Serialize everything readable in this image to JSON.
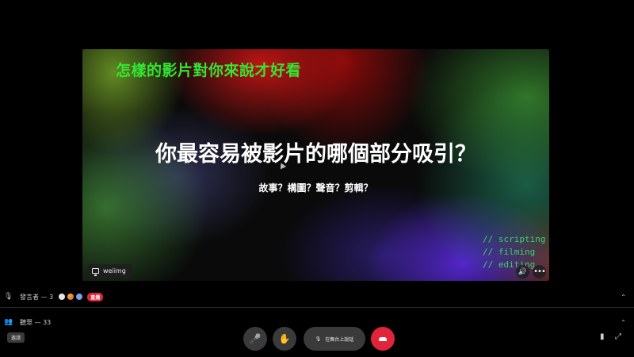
{
  "stage": {
    "topic": "怎樣的影片對你來說才好看",
    "title": "你最容易被影片的哪個部分吸引？",
    "subtitle": "故事？構圖？聲音？剪輯？",
    "tags": [
      "// scripting",
      "// filming",
      "// editing"
    ],
    "streamer": "weiimg",
    "volume_icon": "speaker-icon",
    "more_icon": "more-icon"
  },
  "speakers": {
    "label": "發言者 — 3",
    "live_badge": "直播",
    "icon": "microphone-icon"
  },
  "audience": {
    "label": "聽眾 — 33",
    "icon": "people-icon"
  },
  "controls": {
    "settings_label": "邀請",
    "speak_label": "在舞台上說話",
    "mic_icon": "mic-muted-icon",
    "hand_icon": "raise-hand-icon",
    "leave_icon": "leave-call-icon"
  },
  "colors": {
    "topic": "#33e633",
    "tags": "#3fcf6a",
    "live": "#e0243a",
    "leave": "#e0243a"
  }
}
